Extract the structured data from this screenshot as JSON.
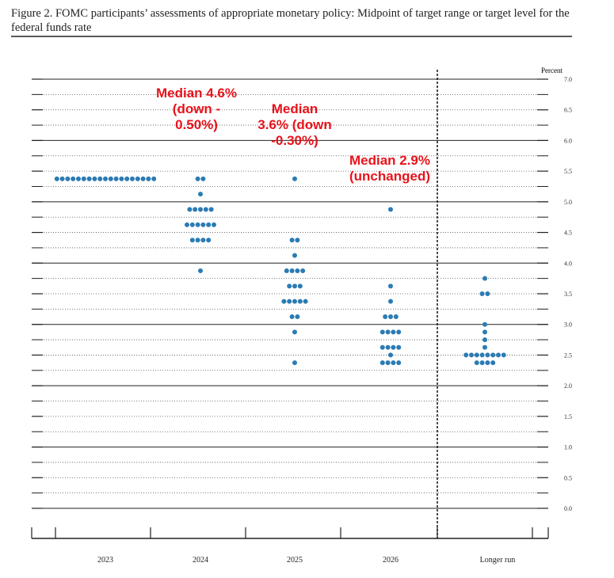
{
  "chart_data": {
    "type": "dot",
    "title": "Figure 2.  FOMC participants’ assessments of appropriate monetary policy: Midpoint of target range or target level for the federal funds rate",
    "y_unit_label": "Percent",
    "categories": [
      "2023",
      "2024",
      "2025",
      "2026",
      "Longer run"
    ],
    "values": [
      [
        5.375,
        5.375,
        5.375,
        5.375,
        5.375,
        5.375,
        5.375,
        5.375,
        5.375,
        5.375,
        5.375,
        5.375,
        5.375,
        5.375,
        5.375,
        5.375,
        5.375,
        5.375,
        5.375
      ],
      [
        5.375,
        5.375,
        5.125,
        4.875,
        4.875,
        4.875,
        4.875,
        4.875,
        4.625,
        4.625,
        4.625,
        4.625,
        4.625,
        4.625,
        4.375,
        4.375,
        4.375,
        4.375,
        3.875
      ],
      [
        5.375,
        4.375,
        4.375,
        4.125,
        3.875,
        3.875,
        3.875,
        3.875,
        3.625,
        3.625,
        3.625,
        3.375,
        3.375,
        3.375,
        3.375,
        3.375,
        3.125,
        3.125,
        2.875,
        2.375
      ],
      [
        4.875,
        3.625,
        3.375,
        3.125,
        3.125,
        3.125,
        2.875,
        2.875,
        2.875,
        2.875,
        2.625,
        2.625,
        2.625,
        2.625,
        2.5,
        2.375,
        2.375,
        2.375,
        2.375
      ],
      [
        3.75,
        3.5,
        3.5,
        3.0,
        2.875,
        2.75,
        2.625,
        2.5,
        2.5,
        2.5,
        2.5,
        2.5,
        2.5,
        2.5,
        2.5,
        2.375,
        2.375,
        2.375,
        2.375
      ]
    ],
    "color": "#2b7bb4",
    "ylim": [
      0,
      7
    ],
    "yticks": [
      {
        "value": 0,
        "label": "0.0"
      },
      {
        "value": 0.5,
        "label": "0.5"
      },
      {
        "value": 1,
        "label": "1.0"
      },
      {
        "value": 1.5,
        "label": "1.5"
      },
      {
        "value": 2,
        "label": "2.0"
      },
      {
        "value": 2.5,
        "label": "2.5"
      },
      {
        "value": 3,
        "label": "3.0"
      },
      {
        "value": 3.5,
        "label": "3.5"
      },
      {
        "value": 4,
        "label": "4.0"
      },
      {
        "value": 4.5,
        "label": "4.5"
      },
      {
        "value": 5,
        "label": "5.0"
      },
      {
        "value": 5.5,
        "label": "5.5"
      },
      {
        "value": 6,
        "label": "6.0"
      },
      {
        "value": 6.5,
        "label": "6.5"
      },
      {
        "value": 7,
        "label": "7.0"
      }
    ],
    "annotations": [
      {
        "lines": [
          "Median 4.6%",
          "(down -",
          "0.50%)"
        ],
        "color": "#e8131b"
      },
      {
        "lines": [
          "Median",
          "3.6% (down",
          "-0.30%)"
        ],
        "color": "#e8131b"
      },
      {
        "lines": [
          "Median 2.9%",
          "(unchanged)"
        ],
        "color": "#e8131b"
      }
    ]
  }
}
